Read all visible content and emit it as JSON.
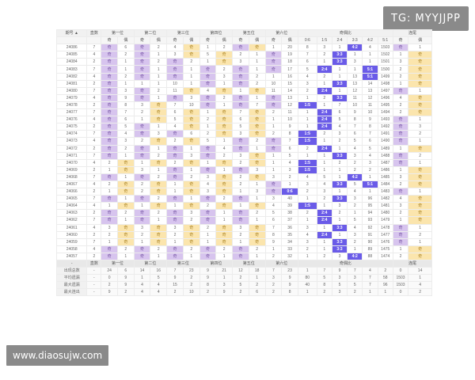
{
  "watermarks": {
    "top_right": "TG: MYYJJPP",
    "bottom_left": "www.diaosujw.com"
  },
  "table": {
    "headers": {
      "issue": "期号 ▲",
      "sum": "直数",
      "positions": [
        "第一位",
        "第二位",
        "第三位",
        "第四位",
        "第五位",
        "第六位"
      ],
      "ratio": "奇偶比",
      "tail": "连尾"
    },
    "subheaders": {
      "pos": [
        "奇",
        "偶"
      ],
      "ratios": [
        "0:6",
        "1:5",
        "2:4",
        "3:3",
        "4:2",
        "5:1",
        "6:0"
      ],
      "tail": [
        "奇",
        "偶"
      ]
    },
    "rows": [
      {
        "id": "24086",
        "d": [
          7,
          "奇",
          6,
          "奇",
          2,
          4,
          "奇",
          1,
          2,
          "奇",
          "奇",
          1,
          20,
          8,
          3,
          1,
          "4:2",
          4,
          1503,
          "奇",
          1
        ]
      },
      {
        "id": "24085",
        "d": [
          4,
          "奇",
          2,
          "奇",
          1,
          3,
          "奇",
          5,
          "奇",
          2,
          1,
          "奇",
          19,
          7,
          2,
          "3:3",
          1,
          1,
          1502,
          1,
          "奇"
        ]
      },
      {
        "id": "24084",
        "d": [
          2,
          "奇",
          1,
          "奇",
          2,
          "奇",
          2,
          1,
          "奇",
          3,
          1,
          "奇",
          18,
          6,
          1,
          "3:3",
          3,
          1,
          1501,
          3,
          "奇"
        ]
      },
      {
        "id": "24083",
        "d": [
          7,
          "奇",
          1,
          "奇",
          1,
          "奇",
          1,
          "奇",
          2,
          "奇",
          1,
          "奇",
          17,
          5,
          "2:4",
          1,
          1,
          "5:1",
          1500,
          2,
          "奇"
        ]
      },
      {
        "id": "24082",
        "d": [
          4,
          "奇",
          2,
          "奇",
          1,
          "奇",
          1,
          "奇",
          3,
          "奇",
          2,
          1,
          16,
          4,
          2,
          1,
          13,
          "5:1",
          1499,
          2,
          "奇"
        ]
      },
      {
        "id": "24081",
        "d": [
          2,
          "奇",
          1,
          1,
          1,
          10,
          1,
          "奇",
          1,
          "奇",
          2,
          10,
          15,
          3,
          1,
          "3:3",
          13,
          14,
          1498,
          1,
          "奇"
        ]
      },
      {
        "id": "24080",
        "d": [
          7,
          "奇",
          3,
          "奇",
          2,
          11,
          "奇",
          4,
          "奇",
          1,
          "奇",
          11,
          14,
          2,
          "2:4",
          1,
          12,
          13,
          1497,
          "奇",
          1
        ]
      },
      {
        "id": "24079",
        "d": [
          4,
          "奇",
          9,
          "奇",
          1,
          "奇",
          3,
          "奇",
          2,
          "奇",
          1,
          "奇",
          13,
          1,
          2,
          "3:3",
          11,
          12,
          1496,
          4,
          "奇"
        ]
      },
      {
        "id": "24078",
        "d": [
          2,
          "奇",
          8,
          3,
          "奇",
          7,
          10,
          "奇",
          1,
          "奇",
          7,
          "奇",
          12,
          "1:5",
          1,
          7,
          10,
          11,
          1495,
          2,
          "奇"
        ]
      },
      {
        "id": "24077",
        "d": [
          7,
          "奇",
          7,
          2,
          "奇",
          6,
          "奇",
          1,
          "奇",
          7,
          "奇",
          2,
          11,
          1,
          "2:4",
          6,
          9,
          10,
          1494,
          2,
          "奇"
        ]
      },
      {
        "id": "24076",
        "d": [
          4,
          "奇",
          6,
          1,
          "奇",
          5,
          "奇",
          2,
          "奇",
          6,
          "奇",
          1,
          10,
          1,
          "2:4",
          5,
          8,
          9,
          1493,
          "奇",
          1
        ]
      },
      {
        "id": "24075",
        "d": [
          2,
          "奇",
          5,
          "奇",
          1,
          4,
          "奇",
          1,
          "奇",
          5,
          "奇",
          1,
          9,
          1,
          "2:4",
          4,
          7,
          8,
          1492,
          "奇",
          3
        ]
      },
      {
        "id": "24074",
        "d": [
          7,
          "奇",
          4,
          "奇",
          3,
          "奇",
          6,
          2,
          "奇",
          3,
          "奇",
          2,
          8,
          "1:5",
          2,
          3,
          6,
          7,
          1491,
          "奇",
          2
        ]
      },
      {
        "id": "24073",
        "d": [
          4,
          "奇",
          3,
          2,
          "奇",
          2,
          "奇",
          5,
          1,
          "奇",
          2,
          "奇",
          7,
          "1:5",
          1,
          2,
          5,
          6,
          1490,
          "奇",
          1
        ]
      },
      {
        "id": "24072",
        "d": [
          2,
          "奇",
          2,
          "奇",
          1,
          "奇",
          1,
          "奇",
          4,
          "奇",
          1,
          "奇",
          6,
          2,
          "2:4",
          1,
          4,
          5,
          1489,
          1,
          "奇"
        ]
      },
      {
        "id": "24071",
        "d": [
          7,
          "奇",
          1,
          "奇",
          2,
          "奇",
          3,
          "奇",
          2,
          3,
          "奇",
          1,
          5,
          1,
          1,
          "3:3",
          3,
          4,
          1488,
          "奇",
          2
        ]
      },
      {
        "id": "24070",
        "d": [
          4,
          2,
          "奇",
          1,
          "奇",
          2,
          "奇",
          1,
          "奇",
          2,
          "奇",
          1,
          4,
          "1:5",
          1,
          2,
          2,
          3,
          1487,
          "奇",
          1
        ]
      },
      {
        "id": "24069",
        "d": [
          2,
          1,
          "奇",
          3,
          1,
          "奇",
          1,
          "奇",
          1,
          "奇",
          3,
          1,
          3,
          "1:5",
          1,
          1,
          2,
          2,
          1486,
          1,
          "奇"
        ]
      },
      {
        "id": "24068",
        "d": [
          7,
          "奇",
          1,
          "奇",
          2,
          "奇",
          2,
          3,
          "奇",
          2,
          "奇",
          3,
          2,
          4,
          5,
          1,
          "4:2",
          1,
          1485,
          3,
          "奇"
        ]
      },
      {
        "id": "24067",
        "d": [
          4,
          2,
          "奇",
          2,
          "奇",
          1,
          "奇",
          4,
          "奇",
          2,
          1,
          "奇",
          1,
          3,
          4,
          "3:3",
          5,
          "5:1",
          1484,
          2,
          "奇"
        ]
      },
      {
        "id": "24066",
        "d": [
          2,
          1,
          "奇",
          2,
          "奇",
          1,
          "奇",
          3,
          "奇",
          1,
          3,
          "奇",
          "0:6",
          2,
          3,
          1,
          4,
          1,
          1483,
          "奇",
          1
        ]
      },
      {
        "id": "24065",
        "d": [
          7,
          "奇",
          1,
          "奇",
          2,
          "奇",
          1,
          "奇",
          2,
          "奇",
          1,
          3,
          40,
          1,
          2,
          "3:3",
          3,
          96,
          1482,
          4,
          "奇"
        ]
      },
      {
        "id": "24064",
        "d": [
          4,
          1,
          "奇",
          1,
          "奇",
          1,
          "奇",
          2,
          "奇",
          1,
          "奇",
          4,
          39,
          "1:5",
          1,
          3,
          2,
          95,
          1481,
          3,
          "奇"
        ]
      },
      {
        "id": "24063",
        "d": [
          2,
          "奇",
          2,
          "奇",
          2,
          "奇",
          3,
          "奇",
          1,
          "奇",
          2,
          5,
          38,
          2,
          "2:4",
          2,
          1,
          94,
          1480,
          2,
          "奇"
        ]
      },
      {
        "id": "24062",
        "d": [
          7,
          "奇",
          1,
          "奇",
          1,
          "奇",
          2,
          "奇",
          1,
          "奇",
          1,
          6,
          37,
          1,
          "2:4",
          1,
          5,
          93,
          1479,
          1,
          "奇"
        ]
      },
      {
        "id": "24061",
        "d": [
          4,
          3,
          "奇",
          3,
          "奇",
          3,
          "奇",
          2,
          "奇",
          3,
          "奇",
          7,
          36,
          3,
          1,
          "3:3",
          4,
          92,
          1478,
          "奇",
          1
        ]
      },
      {
        "id": "24060",
        "d": [
          2,
          2,
          "奇",
          2,
          "奇",
          2,
          "奇",
          1,
          "奇",
          2,
          "奇",
          8,
          35,
          4,
          "2:4",
          1,
          3,
          91,
          1477,
          "奇",
          2
        ]
      },
      {
        "id": "24059",
        "d": [
          7,
          1,
          "奇",
          1,
          "奇",
          1,
          "奇",
          1,
          "奇",
          1,
          "奇",
          9,
          34,
          3,
          1,
          "3:3",
          2,
          90,
          1476,
          "奇",
          1
        ]
      },
      {
        "id": "24058",
        "d": [
          4,
          "奇",
          2,
          "奇",
          2,
          "奇",
          2,
          "奇",
          2,
          "奇",
          2,
          1,
          33,
          2,
          1,
          "3:3",
          1,
          89,
          1475,
          1,
          "奇"
        ]
      },
      {
        "id": "24057",
        "d": [
          2,
          "奇",
          1,
          "奇",
          1,
          "奇",
          1,
          "奇",
          1,
          "奇",
          1,
          2,
          32,
          1,
          2,
          3,
          "4:2",
          88,
          1474,
          2,
          "奇"
        ]
      }
    ],
    "summary": {
      "header_label": "-",
      "rows": [
        {
          "label": "出现总数",
          "d": [
            "-",
            24,
            6,
            14,
            16,
            7,
            23,
            9,
            21,
            12,
            18,
            7,
            23,
            1,
            7,
            9,
            7,
            4,
            2,
            0,
            14,
            16
          ]
        },
        {
          "label": "平均遗漏",
          "d": [
            "-",
            0,
            9,
            1,
            5,
            9,
            2,
            9,
            1,
            2,
            1,
            3,
            9,
            80,
            5,
            3,
            3,
            7,
            58,
            1503,
            1,
            1
          ]
        },
        {
          "label": "最大遗漏",
          "d": [
            "-",
            2,
            9,
            4,
            4,
            15,
            2,
            8,
            3,
            5,
            2,
            2,
            9,
            40,
            8,
            5,
            5,
            7,
            96,
            1503,
            4,
            2
          ]
        },
        {
          "label": "最大连出",
          "d": [
            "-",
            9,
            2,
            4,
            4,
            2,
            10,
            2,
            9,
            2,
            6,
            2,
            8,
            1,
            2,
            3,
            2,
            1,
            1,
            0,
            2,
            2
          ]
        }
      ]
    }
  }
}
